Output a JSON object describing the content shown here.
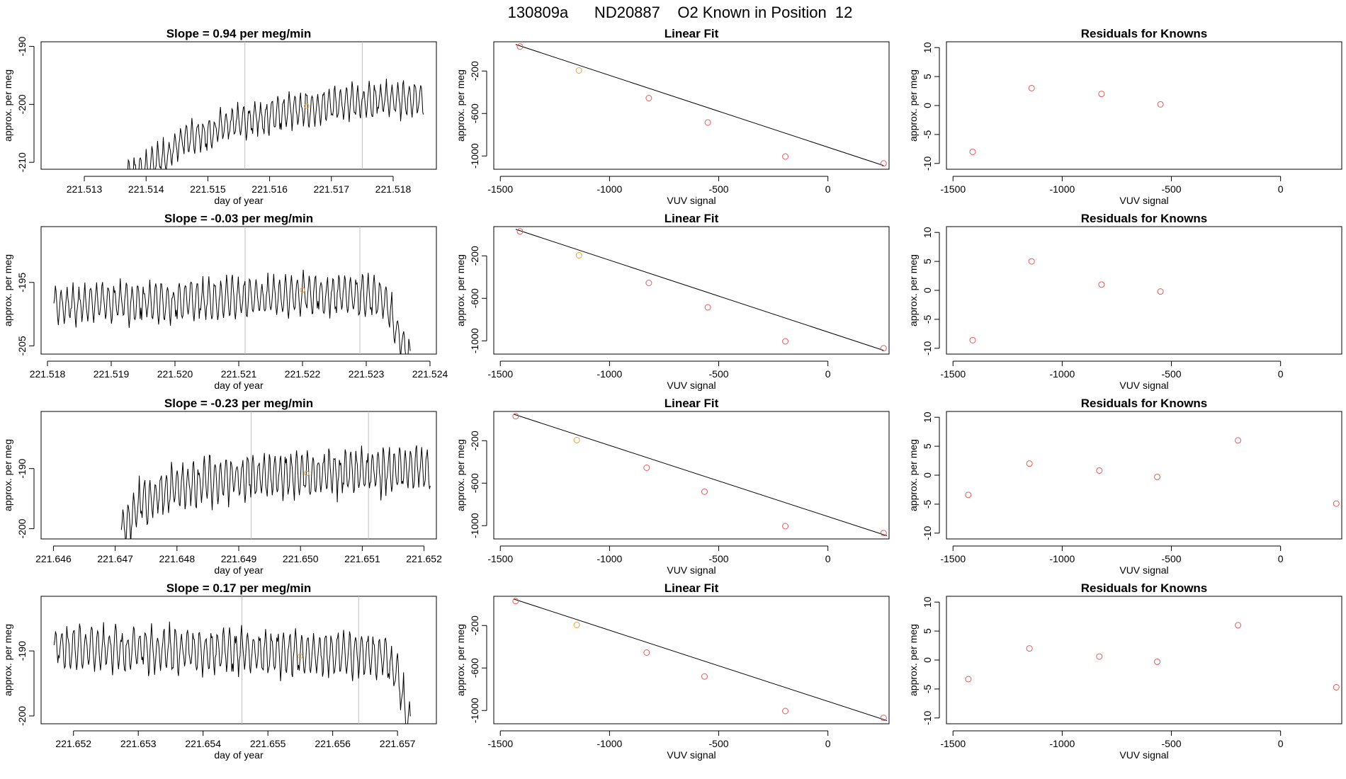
{
  "figure": {
    "title": "130809a      ND20887    O2 Known in Position  12"
  },
  "colors": {
    "ink": "#000000",
    "vline": "#bdbdbd",
    "point": "#e05a5a",
    "highlight": "#e8a13a"
  },
  "chart_data": [
    {
      "row": 0,
      "col": 0,
      "type": "line",
      "title": "Slope =  0.94  per meg/min",
      "xlabel": "day of year",
      "ylabel": "approx. per meg",
      "xlim": [
        221.5123,
        221.5187
      ],
      "ylim": [
        -211.2,
        -189.2
      ],
      "xticks": [
        221.513,
        221.514,
        221.515,
        221.516,
        221.517,
        221.518
      ],
      "xticklabels": [
        "221.513",
        "221.514",
        "221.515",
        "221.516",
        "221.517",
        "221.518"
      ],
      "yticks": [
        -190,
        -200,
        -210
      ],
      "yticklabels": [
        "-190",
        "-200",
        "-210"
      ],
      "vlines": [
        221.5156,
        221.5175
      ],
      "series_start": 221.5137,
      "series_end": 221.5185,
      "levels": [
        [
          221.5137,
          -212
        ],
        [
          221.5142,
          -210
        ],
        [
          221.5146,
          -206
        ],
        [
          221.515,
          -205
        ],
        [
          221.5155,
          -203
        ],
        [
          221.5165,
          -201
        ],
        [
          221.5175,
          -199.5
        ],
        [
          221.5185,
          -199
        ]
      ],
      "amplitude": 2.4,
      "period_s": 2.0,
      "highlight": [
        221.5166,
        -200.3
      ]
    },
    {
      "row": 1,
      "col": 0,
      "type": "line",
      "title": "Slope =  -0.03  per meg/min",
      "xlabel": "day of year",
      "ylabel": "approx. per meg",
      "xlim": [
        221.5179,
        221.5241
      ],
      "ylim": [
        -206.3,
        -186.2
      ],
      "xticks": [
        221.518,
        221.519,
        221.52,
        221.521,
        221.522,
        221.523,
        221.524
      ],
      "xticklabels": [
        "221.518",
        "221.519",
        "221.520",
        "221.521",
        "221.522",
        "221.523",
        "221.524"
      ],
      "yticks": [
        -195,
        -205
      ],
      "yticklabels": [
        "-195",
        "-205"
      ],
      "vlines": [
        221.5211,
        221.5229
      ],
      "series_start": 221.5181,
      "series_end": 221.5237,
      "levels": [
        [
          221.5181,
          -198.5
        ],
        [
          221.52,
          -198
        ],
        [
          221.521,
          -197.5
        ],
        [
          221.522,
          -197
        ],
        [
          221.523,
          -197
        ],
        [
          221.5233,
          -198
        ],
        [
          221.5235,
          -203
        ],
        [
          221.5237,
          -207
        ]
      ],
      "amplitude": 2.6,
      "period_s": 2.0,
      "highlight": [
        221.522,
        -196.2
      ]
    },
    {
      "row": 2,
      "col": 0,
      "type": "line",
      "title": "Slope =  -0.23  per meg/min",
      "xlabel": "day of year",
      "ylabel": "approx. per meg",
      "xlim": [
        221.6458,
        221.6522
      ],
      "ylim": [
        -201.7,
        -180.5
      ],
      "xticks": [
        221.646,
        221.647,
        221.648,
        221.649,
        221.65,
        221.651,
        221.652
      ],
      "xticklabels": [
        "221.646",
        "221.647",
        "221.648",
        "221.649",
        "221.650",
        "221.651",
        "221.652"
      ],
      "yticks": [
        -190,
        -200
      ],
      "yticklabels": [
        "-190",
        "-200"
      ],
      "vlines": [
        221.6492,
        221.6511
      ],
      "series_start": 221.6471,
      "series_end": 221.6521,
      "levels": [
        [
          221.6471,
          -200.5
        ],
        [
          221.6474,
          -196
        ],
        [
          221.648,
          -193
        ],
        [
          221.649,
          -191.5
        ],
        [
          221.65,
          -191
        ],
        [
          221.651,
          -190.5
        ],
        [
          221.6521,
          -190
        ]
      ],
      "amplitude": 3.2,
      "period_s": 1.9,
      "highlight": [
        221.6501,
        -190.8
      ]
    },
    {
      "row": 3,
      "col": 0,
      "type": "line",
      "title": "Slope =  0.17  per meg/min",
      "xlabel": "day of year",
      "ylabel": "approx. per meg",
      "xlim": [
        221.6515,
        221.6576
      ],
      "ylim": [
        -201.2,
        -181.6
      ],
      "xticks": [
        221.652,
        221.653,
        221.654,
        221.655,
        221.656,
        221.657
      ],
      "xticklabels": [
        "221.652",
        "221.653",
        "221.654",
        "221.655",
        "221.656",
        "221.657"
      ],
      "yticks": [
        -190,
        -200
      ],
      "yticklabels": [
        "-190",
        "-200"
      ],
      "vlines": [
        221.6546,
        221.6564
      ],
      "series_start": 221.6517,
      "series_end": 221.6572,
      "levels": [
        [
          221.6517,
          -189.5
        ],
        [
          221.654,
          -190
        ],
        [
          221.656,
          -190.5
        ],
        [
          221.6568,
          -190.5
        ],
        [
          221.657,
          -194
        ],
        [
          221.6572,
          -202
        ]
      ],
      "amplitude": 2.8,
      "period_s": 2.0,
      "highlight": [
        221.6555,
        -190.8
      ]
    },
    {
      "row": 0,
      "col": 1,
      "type": "scatter",
      "title": "Linear Fit",
      "xlabel": "VUV signal",
      "ylabel": "approx. per meg",
      "xlim": [
        -1530,
        280
      ],
      "ylim": [
        -1125,
        75
      ],
      "xticks": [
        -1500,
        -1000,
        -500,
        0
      ],
      "xticklabels": [
        "-1500",
        "-1000",
        "-500",
        "0"
      ],
      "yticks": [
        -200,
        -600,
        -1000
      ],
      "yticklabels": [
        "-200",
        "-600",
        "-1000"
      ],
      "x": [
        -1410,
        -1140,
        -820,
        -550,
        -195,
        255
      ],
      "y": [
        30,
        -195,
        -455,
        -685,
        -1005,
        -1070
      ],
      "highlight_index": 1,
      "fit": [
        [
          -1430,
          50
        ],
        [
          255,
          -1090
        ]
      ]
    },
    {
      "row": 1,
      "col": 1,
      "type": "scatter",
      "title": "Linear Fit",
      "xlabel": "VUV signal",
      "ylabel": "approx. per meg",
      "xlim": [
        -1530,
        280
      ],
      "ylim": [
        -1125,
        75
      ],
      "xticks": [
        -1500,
        -1000,
        -500,
        0
      ],
      "xticklabels": [
        "-1500",
        "-1000",
        "-500",
        "0"
      ],
      "yticks": [
        -200,
        -600,
        -1000
      ],
      "yticklabels": [
        "-200",
        "-600",
        "-1000"
      ],
      "x": [
        -1410,
        -1140,
        -820,
        -550,
        -195,
        255
      ],
      "y": [
        30,
        -195,
        -455,
        -685,
        -1005,
        -1070
      ],
      "highlight_index": 1,
      "fit": [
        [
          -1430,
          50
        ],
        [
          255,
          -1090
        ]
      ]
    },
    {
      "row": 2,
      "col": 1,
      "type": "scatter",
      "title": "Linear Fit",
      "xlabel": "VUV signal",
      "ylabel": "approx. per meg",
      "xlim": [
        -1530,
        280
      ],
      "ylim": [
        -1125,
        75
      ],
      "xticks": [
        -1500,
        -1000,
        -500,
        0
      ],
      "xticklabels": [
        "-1500",
        "-1000",
        "-500",
        "0"
      ],
      "yticks": [
        -200,
        -600,
        -1000
      ],
      "yticklabels": [
        "-200",
        "-600",
        "-1000"
      ],
      "x": [
        -1430,
        -1150,
        -830,
        -565,
        -195,
        255
      ],
      "y": [
        30,
        -195,
        -455,
        -680,
        -1005,
        -1070
      ],
      "highlight_index": 1,
      "fit": [
        [
          -1440,
          50
        ],
        [
          270,
          -1095
        ]
      ]
    },
    {
      "row": 3,
      "col": 1,
      "type": "scatter",
      "title": "Linear Fit",
      "xlabel": "VUV signal",
      "ylabel": "approx. per meg",
      "xlim": [
        -1530,
        280
      ],
      "ylim": [
        -1125,
        75
      ],
      "xticks": [
        -1500,
        -1000,
        -500,
        0
      ],
      "xticklabels": [
        "-1500",
        "-1000",
        "-500",
        "0"
      ],
      "yticks": [
        -200,
        -600,
        -1000
      ],
      "yticklabels": [
        "-200",
        "-600",
        "-1000"
      ],
      "x": [
        -1430,
        -1150,
        -830,
        -565,
        -195,
        255
      ],
      "y": [
        30,
        -195,
        -455,
        -680,
        -1005,
        -1070
      ],
      "highlight_index": 1,
      "fit": [
        [
          -1440,
          50
        ],
        [
          270,
          -1095
        ]
      ]
    },
    {
      "row": 0,
      "col": 2,
      "type": "scatter",
      "title": "Residuals for Knowns",
      "xlabel": "VUV signal",
      "ylabel": "approx. per meg",
      "xlim": [
        -1530,
        280
      ],
      "ylim": [
        -11,
        11
      ],
      "xticks": [
        -1500,
        -1000,
        -500,
        0
      ],
      "xticklabels": [
        "-1500",
        "-1000",
        "-500",
        "0"
      ],
      "yticks": [
        10,
        5,
        0,
        -5,
        -10
      ],
      "yticklabels": [
        "10",
        "5",
        "0",
        "-5",
        "-10"
      ],
      "x": [
        -1410,
        -1140,
        -820,
        -550
      ],
      "y": [
        -8,
        3,
        2,
        0.2
      ]
    },
    {
      "row": 1,
      "col": 2,
      "type": "scatter",
      "title": "Residuals for Knowns",
      "xlabel": "VUV signal",
      "ylabel": "approx. per meg",
      "xlim": [
        -1530,
        280
      ],
      "ylim": [
        -11,
        11
      ],
      "xticks": [
        -1500,
        -1000,
        -500,
        0
      ],
      "xticklabels": [
        "-1500",
        "-1000",
        "-500",
        "0"
      ],
      "yticks": [
        10,
        5,
        0,
        -5,
        -10
      ],
      "yticklabels": [
        "10",
        "5",
        "0",
        "-5",
        "-10"
      ],
      "x": [
        -1410,
        -1140,
        -820,
        -550
      ],
      "y": [
        -8.6,
        5,
        1,
        -0.2
      ]
    },
    {
      "row": 2,
      "col": 2,
      "type": "scatter",
      "title": "Residuals for Knowns",
      "xlabel": "VUV signal",
      "ylabel": "approx. per meg",
      "xlim": [
        -1530,
        280
      ],
      "ylim": [
        -11,
        11
      ],
      "xticks": [
        -1500,
        -1000,
        -500,
        0
      ],
      "xticklabels": [
        "-1500",
        "-1000",
        "-500",
        "0"
      ],
      "yticks": [
        10,
        5,
        0,
        -5,
        -10
      ],
      "yticklabels": [
        "10",
        "5",
        "0",
        "-5",
        "-10"
      ],
      "x": [
        -1430,
        -1150,
        -830,
        -565,
        -195,
        255
      ],
      "y": [
        -3.4,
        2,
        0.8,
        -0.3,
        6,
        -4.9
      ]
    },
    {
      "row": 3,
      "col": 2,
      "type": "scatter",
      "title": "Residuals for Knowns",
      "xlabel": "VUV signal",
      "ylabel": "approx. per meg",
      "xlim": [
        -1530,
        280
      ],
      "ylim": [
        -11,
        11
      ],
      "xticks": [
        -1500,
        -1000,
        -500,
        0
      ],
      "xticklabels": [
        "-1500",
        "-1000",
        "-500",
        "0"
      ],
      "yticks": [
        10,
        5,
        0,
        -5,
        -10
      ],
      "yticklabels": [
        "10",
        "5",
        "0",
        "-5",
        "-10"
      ],
      "x": [
        -1430,
        -1150,
        -830,
        -565,
        -195,
        255
      ],
      "y": [
        -3.3,
        2,
        0.6,
        -0.3,
        6,
        -4.7
      ]
    }
  ]
}
